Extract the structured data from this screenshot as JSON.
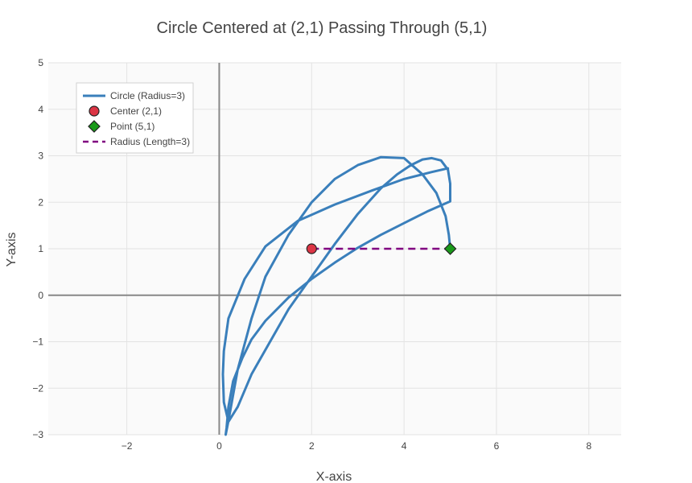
{
  "chart_data": {
    "type": "line",
    "title": "Circle Centered at (2,1) Passing Through (5,1)",
    "xlabel": "X-axis",
    "ylabel": "Y-axis",
    "xlim": [
      -3.7,
      8.7
    ],
    "ylim": [
      -3,
      5
    ],
    "xticks": [
      -2,
      0,
      2,
      4,
      6,
      8
    ],
    "xtick_labels": [
      "−2",
      "0",
      "2",
      "4",
      "6",
      "8"
    ],
    "yticks": [
      -3,
      -2,
      -1,
      0,
      1,
      2,
      3,
      4,
      5
    ],
    "ytick_labels": [
      "−3",
      "−2",
      "−1",
      "0",
      "1",
      "2",
      "3",
      "4",
      "5"
    ],
    "grid": true,
    "legend_position": "top-left",
    "series": [
      {
        "name": "Circle (Radius=3)",
        "kind": "line",
        "color": "#3a7fbb",
        "x": [
          4.95,
          4.6,
          4.0,
          3.3,
          2.5,
          1.7,
          1.0,
          0.55,
          0.2,
          0.1,
          0.08,
          0.1,
          0.2,
          0.4,
          0.7,
          1.1,
          1.5,
          2.0,
          2.5,
          3.0,
          3.5,
          3.85,
          4.15,
          4.4,
          4.6,
          4.8,
          4.95,
          5.0,
          5.0,
          4.5,
          4.0,
          3.5,
          3.0,
          2.5,
          2.0,
          1.5,
          1.0,
          0.7,
          0.5,
          0.3,
          0.2,
          0.16,
          0.14,
          0.2,
          0.4,
          0.7,
          1.0,
          1.5,
          2.0,
          2.5,
          3.0,
          3.5,
          4.0,
          4.4,
          4.7,
          4.9,
          4.97,
          5.0
        ],
        "y": [
          2.73,
          2.65,
          2.5,
          2.25,
          1.95,
          1.6,
          1.05,
          0.35,
          -0.5,
          -1.2,
          -1.7,
          -2.3,
          -2.72,
          -2.4,
          -1.7,
          -1.0,
          -0.3,
          0.4,
          1.1,
          1.75,
          2.3,
          2.6,
          2.8,
          2.92,
          2.95,
          2.9,
          2.7,
          2.4,
          2.02,
          1.8,
          1.55,
          1.3,
          1.02,
          0.7,
          0.35,
          -0.05,
          -0.55,
          -0.95,
          -1.35,
          -1.85,
          -2.4,
          -2.85,
          -3.0,
          -2.7,
          -1.6,
          -0.5,
          0.4,
          1.3,
          2.0,
          2.5,
          2.8,
          2.97,
          2.95,
          2.6,
          2.2,
          1.7,
          1.3,
          1.0
        ]
      },
      {
        "name": "Center (2,1)",
        "kind": "marker",
        "marker": "circle",
        "color": "#dc3545",
        "x": [
          2
        ],
        "y": [
          1
        ]
      },
      {
        "name": "Point (5,1)",
        "kind": "marker",
        "marker": "diamond",
        "color": "#1a9a1a",
        "x": [
          5
        ],
        "y": [
          1
        ]
      },
      {
        "name": "Radius (Length=3)",
        "kind": "dashed-line",
        "color": "#800080",
        "x": [
          2,
          5
        ],
        "y": [
          1,
          1
        ]
      }
    ]
  }
}
